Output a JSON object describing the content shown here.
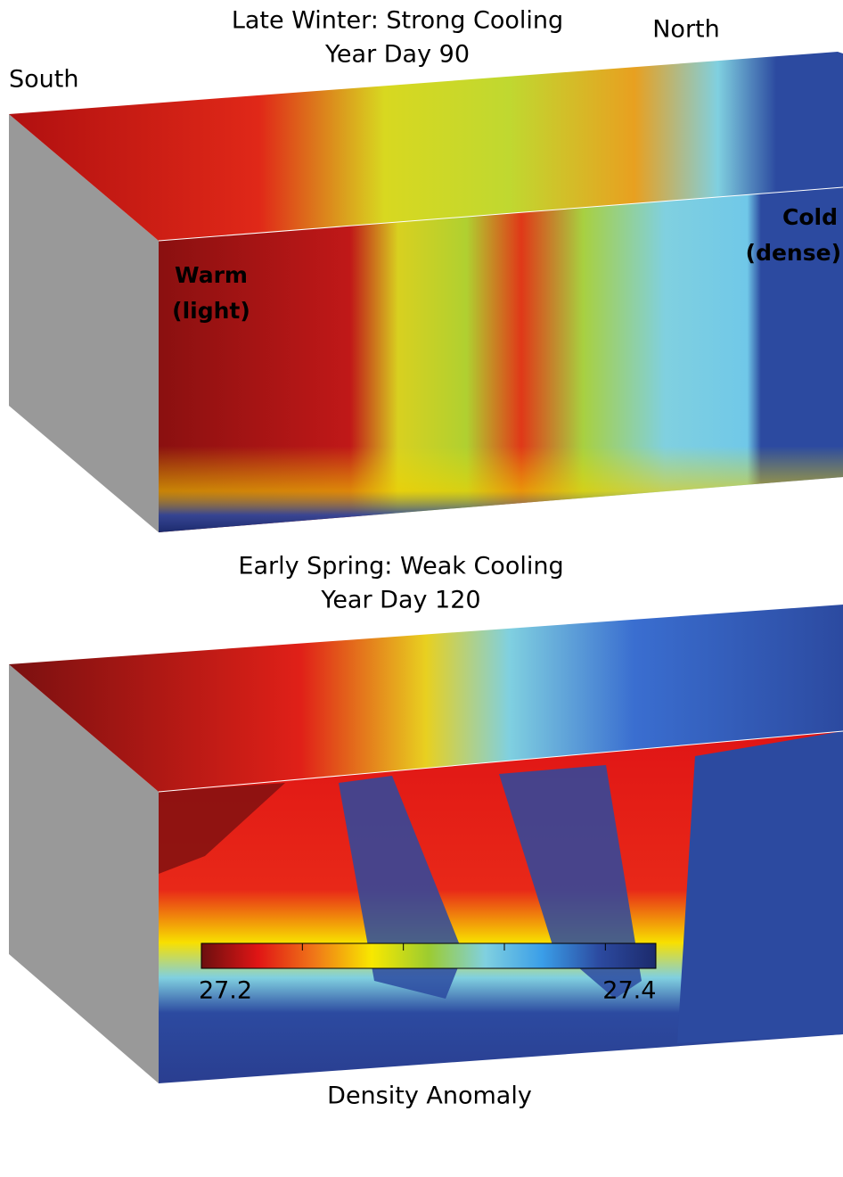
{
  "chart_data": {
    "type": "colorbar-figure",
    "panels": [
      {
        "title": "Late Winter: Strong Cooling",
        "subtitle": "Year Day 90",
        "south_label": "South",
        "north_label": "North",
        "warm_label": [
          "Warm",
          "(light)"
        ],
        "cold_label": [
          "Cold",
          "(dense)"
        ]
      },
      {
        "title": "Early Spring:  Weak Cooling",
        "subtitle": "Year Day 120"
      }
    ],
    "colorbar": {
      "title": "Density Anomaly",
      "range": [
        27.2,
        27.425
      ],
      "ticks": [
        27.2,
        27.4
      ],
      "minor_ticks": [
        27.25,
        27.3,
        27.35
      ],
      "colors": [
        "#6b0f0f",
        "#e01515",
        "#f07818",
        "#f8e800",
        "#9ccc30",
        "#80d0e0",
        "#3a9ee8",
        "#2c4aa0",
        "#1c2a6c"
      ]
    }
  }
}
